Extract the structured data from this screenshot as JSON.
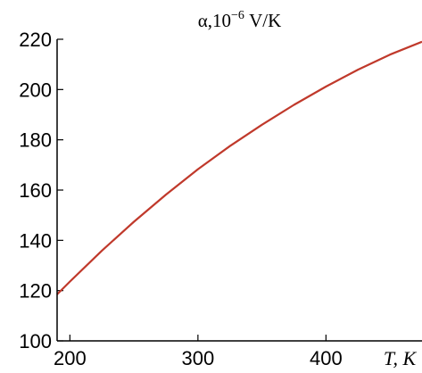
{
  "chart_data": {
    "type": "line",
    "title_parts": {
      "alpha": "α",
      "comma": ",10",
      "exponent": "−6",
      "unit": " V/K"
    },
    "xlabel": "T, K",
    "ylabel": "",
    "xlim": [
      190,
      475
    ],
    "ylim": [
      100,
      220
    ],
    "x_ticks": [
      200,
      300,
      400
    ],
    "y_ticks": [
      100,
      120,
      140,
      160,
      180,
      200,
      220
    ],
    "series": [
      {
        "color": "#c0392b",
        "x": [
          190,
          200,
          225,
          250,
          275,
          300,
          325,
          350,
          375,
          400,
          425,
          450,
          475
        ],
        "y": [
          118.5,
          123.6,
          135.9,
          147.4,
          158.2,
          168.3,
          177.5,
          186.0,
          193.9,
          201.2,
          207.9,
          213.9,
          219.0
        ]
      }
    ],
    "axis_color": "#000000",
    "grid": false
  }
}
